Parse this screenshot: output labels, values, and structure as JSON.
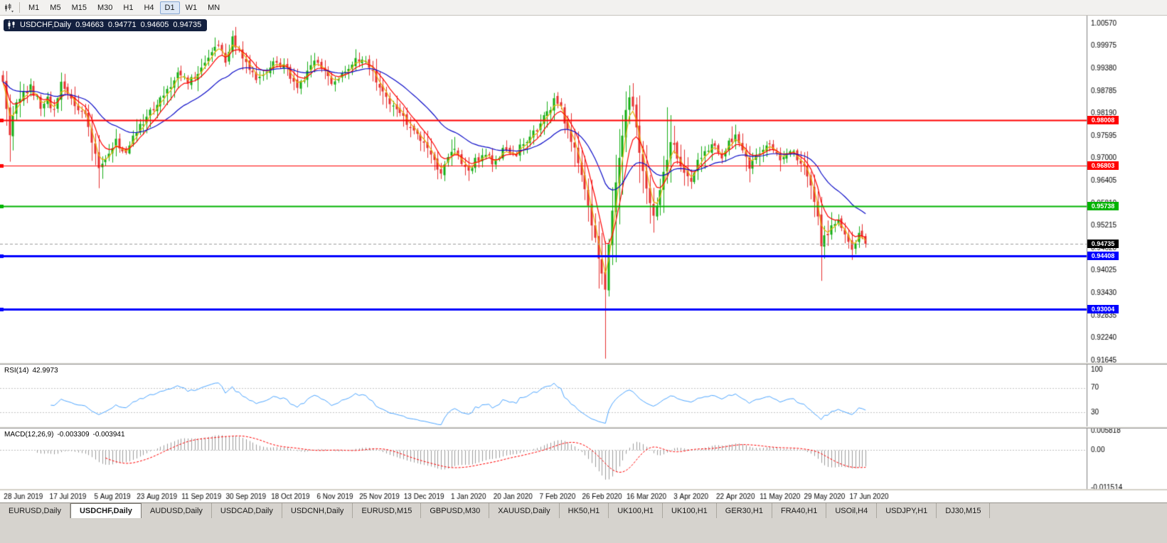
{
  "toolbar": {
    "timeframes": [
      {
        "label": "M1",
        "active": false
      },
      {
        "label": "M5",
        "active": false
      },
      {
        "label": "M15",
        "active": false
      },
      {
        "label": "M30",
        "active": false
      },
      {
        "label": "H1",
        "active": false
      },
      {
        "label": "H4",
        "active": false
      },
      {
        "label": "D1",
        "active": true
      },
      {
        "label": "W1",
        "active": false
      },
      {
        "label": "MN",
        "active": false
      }
    ]
  },
  "rsi_panel": {
    "name": "RSI(14)",
    "value": "42.9973"
  },
  "macd_panel": {
    "name": "MACD(12,26,9)",
    "main": "-0.003309",
    "signal": "-0.003941"
  },
  "chart_data": {
    "type": "candlestick",
    "symbol": "USDCHF",
    "timeframe": "Daily",
    "title": "USDCHF,Daily",
    "ohlc": {
      "open": "0.94663",
      "high": "0.94771",
      "low": "0.94605",
      "close": "0.94735"
    },
    "up_color": "#13ae13",
    "down_color": "#e62e2e",
    "y_axis": {
      "top": 1.0057,
      "bottom": 0.91645,
      "labels": [
        "1.00570",
        "0.99975",
        "0.99380",
        "0.98785",
        "0.98190",
        "0.97595",
        "0.97000",
        "0.96405",
        "0.95810",
        "0.95215",
        "0.94620",
        "0.94025",
        "0.93430",
        "0.92835",
        "0.92240",
        "0.91645"
      ]
    },
    "x_axis_dates": [
      "28 Jun 2019",
      "17 Jul 2019",
      "5 Aug 2019",
      "23 Aug 2019",
      "11 Sep 2019",
      "30 Sep 2019",
      "18 Oct 2019",
      "6 Nov 2019",
      "25 Nov 2019",
      "13 Dec 2019",
      "1 Jan 2020",
      "20 Jan 2020",
      "7 Feb 2020",
      "26 Feb 2020",
      "16 Mar 2020",
      "3 Apr 2020",
      "22 Apr 2020",
      "11 May 2020",
      "29 May 2020",
      "17 Jun 2020"
    ],
    "candles_count": 253,
    "close_path": [
      [
        0,
        0.99
      ],
      [
        2,
        0.9768
      ],
      [
        4,
        0.985
      ],
      [
        6,
        0.9875
      ],
      [
        8,
        0.9888
      ],
      [
        11,
        0.9842
      ],
      [
        13,
        0.9856
      ],
      [
        15,
        0.9822
      ],
      [
        17,
        0.9896
      ],
      [
        20,
        0.9858
      ],
      [
        23,
        0.9825
      ],
      [
        25,
        0.979
      ],
      [
        27,
        0.971
      ],
      [
        28,
        0.9668
      ],
      [
        30,
        0.9705
      ],
      [
        33,
        0.9742
      ],
      [
        36,
        0.9712
      ],
      [
        39,
        0.9768
      ],
      [
        43,
        0.9822
      ],
      [
        47,
        0.9868
      ],
      [
        50,
        0.9912
      ],
      [
        52,
        0.9926
      ],
      [
        54,
        0.9896
      ],
      [
        57,
        0.9932
      ],
      [
        60,
        0.9962
      ],
      [
        63,
        0.9996
      ],
      [
        65,
        0.9952
      ],
      [
        67,
        1.0012
      ],
      [
        69,
        0.9982
      ],
      [
        72,
        0.9938
      ],
      [
        74,
        0.9902
      ],
      [
        77,
        0.9936
      ],
      [
        80,
        0.9952
      ],
      [
        83,
        0.9932
      ],
      [
        86,
        0.9896
      ],
      [
        89,
        0.9922
      ],
      [
        91,
        0.9952
      ],
      [
        94,
        0.9922
      ],
      [
        97,
        0.9898
      ],
      [
        100,
        0.9932
      ],
      [
        103,
        0.9958
      ],
      [
        105,
        0.9962
      ],
      [
        108,
        0.9922
      ],
      [
        111,
        0.9875
      ],
      [
        114,
        0.9838
      ],
      [
        117,
        0.9802
      ],
      [
        120,
        0.9772
      ],
      [
        123,
        0.9738
      ],
      [
        126,
        0.9692
      ],
      [
        128,
        0.9662
      ],
      [
        130,
        0.9696
      ],
      [
        132,
        0.9722
      ],
      [
        134,
        0.9692
      ],
      [
        136,
        0.9675
      ],
      [
        139,
        0.9702
      ],
      [
        141,
        0.9716
      ],
      [
        143,
        0.9688
      ],
      [
        146,
        0.9722
      ],
      [
        149,
        0.9706
      ],
      [
        152,
        0.9736
      ],
      [
        155,
        0.9772
      ],
      [
        157,
        0.9792
      ],
      [
        159,
        0.9822
      ],
      [
        161,
        0.9848
      ],
      [
        163,
        0.9828
      ],
      [
        165,
        0.9772
      ],
      [
        167,
        0.9722
      ],
      [
        169,
        0.9655
      ],
      [
        171,
        0.9575
      ],
      [
        173,
        0.9485
      ],
      [
        175,
        0.9395
      ],
      [
        176,
        0.9345
      ],
      [
        177,
        0.9475
      ],
      [
        178,
        0.9558
      ],
      [
        179,
        0.9625
      ],
      [
        180,
        0.9695
      ],
      [
        181,
        0.9762
      ],
      [
        182,
        0.9825
      ],
      [
        183,
        0.9868
      ],
      [
        184,
        0.9832
      ],
      [
        185,
        0.9785
      ],
      [
        186,
        0.9718
      ],
      [
        188,
        0.9612
      ],
      [
        190,
        0.9552
      ],
      [
        192,
        0.9618
      ],
      [
        194,
        0.9688
      ],
      [
        195,
        0.9748
      ],
      [
        197,
        0.9702
      ],
      [
        199,
        0.9662
      ],
      [
        201,
        0.9638
      ],
      [
        203,
        0.9688
      ],
      [
        206,
        0.9722
      ],
      [
        208,
        0.9736
      ],
      [
        210,
        0.9706
      ],
      [
        212,
        0.9742
      ],
      [
        214,
        0.9762
      ],
      [
        216,
        0.9712
      ],
      [
        218,
        0.9678
      ],
      [
        220,
        0.9706
      ],
      [
        222,
        0.9726
      ],
      [
        224,
        0.9736
      ],
      [
        226,
        0.9706
      ],
      [
        228,
        0.9692
      ],
      [
        230,
        0.9716
      ],
      [
        232,
        0.9702
      ],
      [
        234,
        0.9672
      ],
      [
        236,
        0.9618
      ],
      [
        238,
        0.9555
      ],
      [
        239,
        0.9462
      ],
      [
        240,
        0.9492
      ],
      [
        242,
        0.9512
      ],
      [
        244,
        0.9528
      ],
      [
        246,
        0.9496
      ],
      [
        248,
        0.9462
      ],
      [
        249,
        0.9478
      ],
      [
        250,
        0.9502
      ],
      [
        251,
        0.9488
      ],
      [
        252,
        0.94735
      ]
    ],
    "wick_overrides": {
      "2": {
        "low": 0.9757
      },
      "67": {
        "high": 1.0038
      },
      "176": {
        "low": 0.9169
      },
      "183": {
        "high": 0.9893
      },
      "194": {
        "high": 0.9835
      },
      "239": {
        "low": 0.9375
      }
    },
    "moving_averages": [
      {
        "period": 3,
        "color": "#e8b40a"
      },
      {
        "period": 7,
        "color": "#ff0000"
      },
      {
        "period": 25,
        "color": "#0a0ac8"
      }
    ],
    "hlines": [
      {
        "price": 0.98008,
        "label": "0.98008",
        "color": "#ff0000",
        "width": 2
      },
      {
        "price": 0.96803,
        "label": "0.96803",
        "color": "#ff0000",
        "width": 1
      },
      {
        "price": 0.95738,
        "label": "0.95738",
        "color": "#00b300",
        "width": 2
      },
      {
        "price": 0.94408,
        "label": "0.94408",
        "color": "#0000ff",
        "width": 3
      },
      {
        "price": 0.93004,
        "label": "0.93004",
        "color": "#0000ff",
        "width": 3
      }
    ],
    "current_price": {
      "value": 0.94735,
      "label": "0.94735"
    },
    "rsi": {
      "period": 14,
      "value": 42.9973,
      "levels": [
        70,
        30
      ],
      "labels": [
        "100",
        "70",
        "30"
      ],
      "color": "#4da6ff"
    },
    "macd": {
      "params": "12,26,9",
      "main": -0.003309,
      "signal": -0.003941,
      "scale_labels": [
        "0.005818",
        "0.00",
        "-0.011514"
      ],
      "scale_max": 0.005818,
      "scale_min": -0.011514,
      "hist_color": "#9c9c9c",
      "signal_color": "#ff0000"
    }
  },
  "tabs": [
    {
      "label": "EURUSD,Daily",
      "active": false
    },
    {
      "label": "USDCHF,Daily",
      "active": true
    },
    {
      "label": "AUDUSD,Daily",
      "active": false
    },
    {
      "label": "USDCAD,Daily",
      "active": false
    },
    {
      "label": "USDCNH,Daily",
      "active": false
    },
    {
      "label": "EURUSD,M15",
      "active": false
    },
    {
      "label": "GBPUSD,M30",
      "active": false
    },
    {
      "label": "XAUUSD,Daily",
      "active": false
    },
    {
      "label": "HK50,H1",
      "active": false
    },
    {
      "label": "UK100,H1",
      "active": false
    },
    {
      "label": "UK100,H1",
      "active": false
    },
    {
      "label": "GER30,H1",
      "active": false
    },
    {
      "label": "FRA40,H1",
      "active": false
    },
    {
      "label": "USOil,H4",
      "active": false
    },
    {
      "label": "USDJPY,H1",
      "active": false
    },
    {
      "label": "DJ30,M15",
      "active": false
    }
  ]
}
